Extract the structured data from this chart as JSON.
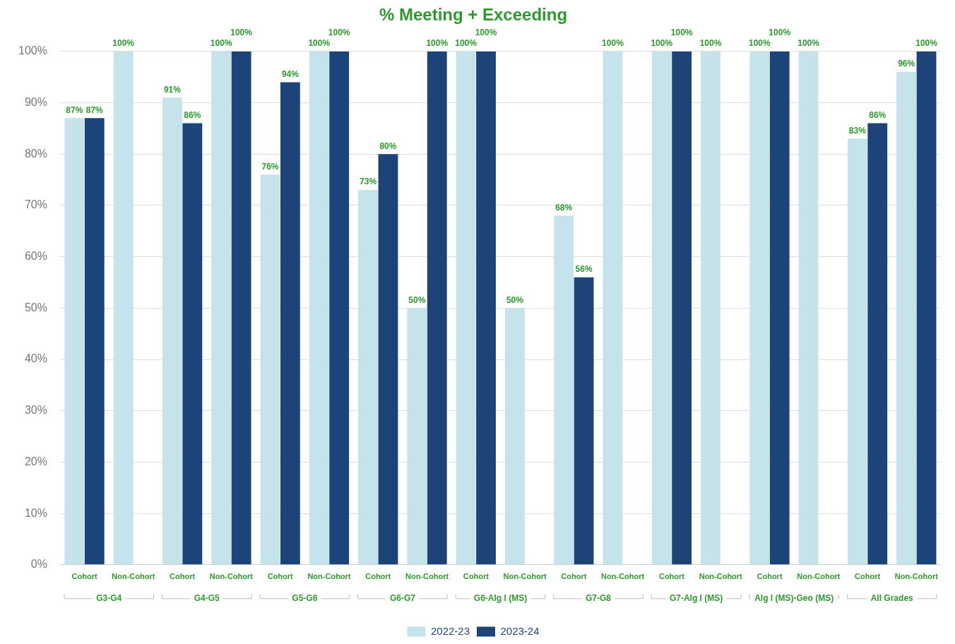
{
  "chart_data": {
    "type": "bar",
    "title": "% Meeting + Exceeding",
    "categories": [
      "Cohort",
      "Non-Cohort",
      "Cohort",
      "Non-Cohort",
      "Cohort",
      "Non-Cohort",
      "Cohort",
      "Non-Cohort",
      "Cohort",
      "Non-Cohort",
      "Cohort",
      "Non-Cohort",
      "Cohort",
      "Non-Cohort",
      "Cohort",
      "Non-Cohort",
      "Cohort",
      "Non-Cohort"
    ],
    "annotations": [
      "G3-G4",
      "G4-G5",
      "G5-G6",
      "G6-G7",
      "G6-Alg I (MS)",
      "G7-G8",
      "G7-Alg I (MS)",
      "Alg I (MS)-Geo (MS)",
      "All Grades"
    ],
    "series": [
      {
        "name": "2022-23",
        "color": "#c5e3ea",
        "values": [
          87,
          100,
          91,
          100,
          76,
          100,
          73,
          50,
          100,
          50,
          68,
          100,
          100,
          100,
          100,
          100,
          83,
          96
        ],
        "value_labels": [
          "87%",
          "100%",
          "91%",
          "100%",
          "76%",
          "100%",
          "73%",
          "50%",
          "100%",
          "50%",
          "68%",
          "100%",
          "100%",
          "100%",
          "100%",
          "100%",
          "83%",
          "96%"
        ]
      },
      {
        "name": "2023-24",
        "color": "#1c4479",
        "values": [
          87,
          null,
          86,
          100,
          94,
          100,
          80,
          100,
          100,
          null,
          56,
          null,
          100,
          null,
          100,
          null,
          86,
          100
        ],
        "value_labels": [
          "87%",
          null,
          "86%",
          "100%",
          "94%",
          "100%",
          "80%",
          "100%",
          "100%",
          null,
          "56%",
          null,
          "100%",
          null,
          "100%",
          null,
          "86%",
          "100%"
        ]
      }
    ],
    "ylim": [
      0,
      100
    ],
    "yticks": [
      {
        "value": 0,
        "label": "0%"
      },
      {
        "value": 10,
        "label": "10%"
      },
      {
        "value": 20,
        "label": "20%"
      },
      {
        "value": 30,
        "label": "30%"
      },
      {
        "value": 40,
        "label": "40%"
      },
      {
        "value": 50,
        "label": "50%"
      },
      {
        "value": 60,
        "label": "60%"
      },
      {
        "value": 70,
        "label": "70%"
      },
      {
        "value": 80,
        "label": "80%"
      },
      {
        "value": 90,
        "label": "90%"
      },
      {
        "value": 100,
        "label": "100%"
      }
    ],
    "grid": "y",
    "legend": "bottom"
  }
}
